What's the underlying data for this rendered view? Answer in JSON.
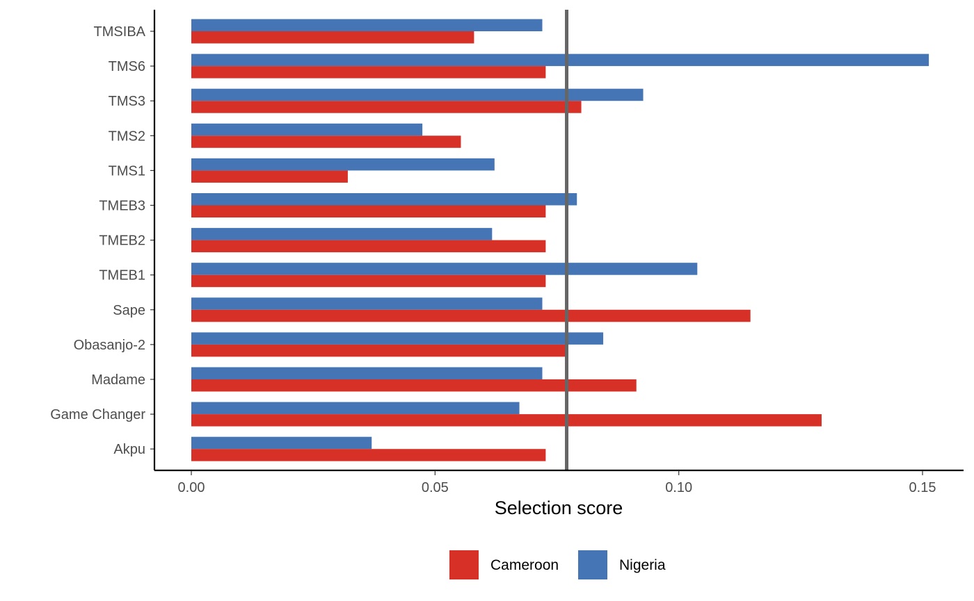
{
  "chart_data": {
    "type": "bar",
    "orientation": "horizontal",
    "title": "",
    "xlabel": "Selection score",
    "ylabel": "",
    "xlim": [
      -0.0075,
      0.1585
    ],
    "x_ticks": [
      0.0,
      0.05,
      0.1,
      0.15
    ],
    "x_tick_labels": [
      "0.00",
      "0.05",
      "0.10",
      "0.15"
    ],
    "grid": false,
    "legend_position": "bottom",
    "categories": [
      "TMSIBA",
      "TMS6",
      "TMS3",
      "TMS2",
      "TMS1",
      "TMEB3",
      "TMEB2",
      "TMEB1",
      "Sape",
      "Obasanjo-2",
      "Madame",
      "Game Changer",
      "Akpu"
    ],
    "series": [
      {
        "name": "Cameroon",
        "color": "#D73027",
        "values": [
          0.058,
          0.0727,
          0.08,
          0.0553,
          0.0321,
          0.0727,
          0.0727,
          0.0727,
          0.1147,
          0.0773,
          0.0913,
          0.1293,
          0.0727
        ]
      },
      {
        "name": "Nigeria",
        "color": "#4575B4",
        "values": [
          0.072,
          0.1513,
          0.0927,
          0.0474,
          0.0622,
          0.0791,
          0.0617,
          0.1038,
          0.072,
          0.0845,
          0.072,
          0.0673,
          0.037
        ]
      }
    ],
    "reference_line": {
      "value": 0.077,
      "color": "#666666"
    }
  }
}
